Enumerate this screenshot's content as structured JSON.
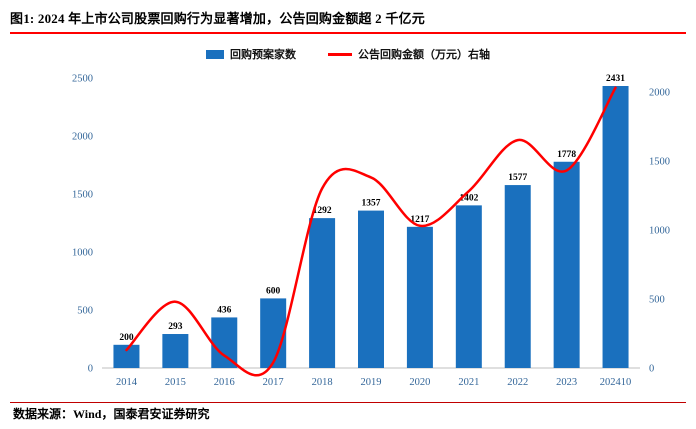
{
  "figure": {
    "title": "图1:  2024 年上市公司股票回购行为显著增加，公告回购金额超 2 千亿元",
    "source": "数据来源：Wind，国泰君安证券研究"
  },
  "colors": {
    "bar": "#1A70BE",
    "line": "#FF0000",
    "axis_label": "#336699",
    "value_label": "#000000",
    "title_rule": "#FF0000",
    "footer_rule": "#C00000",
    "axis_line": "#BFBFBF"
  },
  "chart_data": {
    "type": "bar",
    "title": "图1:  2024 年上市公司股票回购行为显著增加，公告回购金额超 2 千亿元",
    "categories": [
      "2014",
      "2015",
      "2016",
      "2017",
      "2018",
      "2019",
      "2020",
      "2021",
      "2022",
      "2023",
      "202410"
    ],
    "series": [
      {
        "name": "回购预案家数",
        "type": "bar",
        "axis": "left",
        "color": "#1A70BE",
        "values": [
          200,
          293,
          436,
          600,
          1292,
          1357,
          1217,
          1402,
          1577,
          1778,
          2431
        ]
      },
      {
        "name": "公告回购金额（万元）右轴",
        "type": "line",
        "axis": "right",
        "color": "#FF0000",
        "values": [
          130,
          480,
          90,
          40,
          1300,
          1380,
          1030,
          1280,
          1650,
          1430,
          2030
        ]
      }
    ],
    "left_axis": {
      "min": 0,
      "max": 2500,
      "step": 500
    },
    "right_axis": {
      "min": 0,
      "max": 2100,
      "step": 500
    },
    "grid": false,
    "legend_position": "top",
    "bar_value_labels": true
  }
}
